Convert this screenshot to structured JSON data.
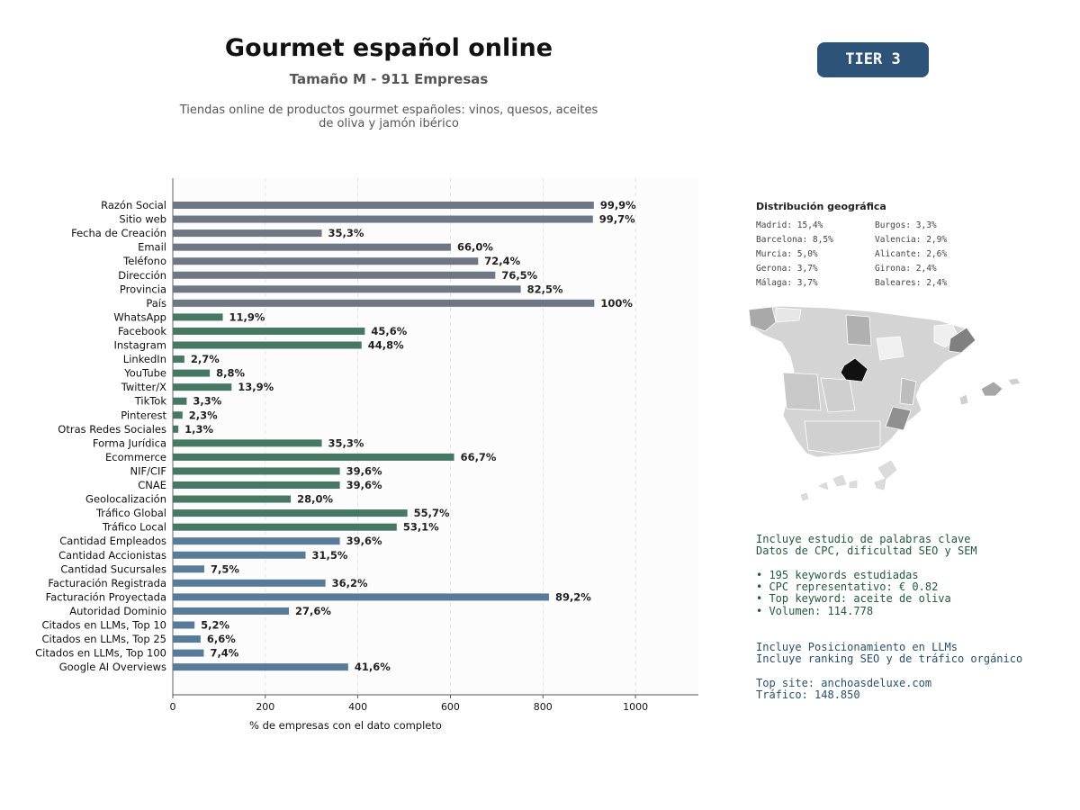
{
  "header": {
    "title": "Gourmet español online",
    "subtitle": "Tamaño M - 911 Empresas",
    "description_line1": "Tiendas online de productos gourmet españoles: vinos, quesos, aceites",
    "description_line2": "de oliva y jamón ibérico",
    "tier": "TIER 3"
  },
  "colors": {
    "gray": "#6e7783",
    "green": "#467863",
    "blue": "#587b99",
    "tier_bg": "#2e5379"
  },
  "chart_data": {
    "type": "bar",
    "orientation": "horizontal",
    "xlabel": "% de empresas con el dato completo",
    "xlim": [
      0,
      1136
    ],
    "xticks": [
      0,
      200,
      400,
      600,
      800,
      1000
    ],
    "grid": "vertical dashed",
    "categories": [
      "Razón Social",
      "Sitio web",
      "Fecha de Creación",
      "Email",
      "Teléfono",
      "Dirección",
      "Provincia",
      "País",
      "WhatsApp",
      "Facebook",
      "Instagram",
      "LinkedIn",
      "YouTube",
      "Twitter/X",
      "TikTok",
      "Pinterest",
      "Otras Redes Sociales",
      "Forma Jurídica",
      "Ecommerce",
      "NIF/CIF",
      "CNAE",
      "Geolocalización",
      "Tráfico Global",
      "Tráfico Local",
      "Cantidad Empleados",
      "Cantidad Accionistas",
      "Cantidad Sucursales",
      "Facturación Registrada",
      "Facturación Proyectada",
      "Autoridad Dominio",
      "Citados en LLMs, Top 10",
      "Citados en LLMs, Top 25",
      "Citados en LLMs, Top 100",
      "Google AI Overviews"
    ],
    "values": [
      910,
      908,
      322,
      601,
      660,
      697,
      752,
      911,
      108,
      415,
      408,
      25,
      80,
      127,
      30,
      21,
      12,
      322,
      608,
      361,
      361,
      255,
      507,
      484,
      361,
      287,
      68,
      330,
      813,
      251,
      47,
      60,
      67,
      379
    ],
    "labels": [
      "99,9%",
      "99,7%",
      "35,3%",
      "66,0%",
      "72,4%",
      "76,5%",
      "82,5%",
      "100%",
      "11,9%",
      "45,6%",
      "44,8%",
      "2,7%",
      "8,8%",
      "13,9%",
      "3,3%",
      "2,3%",
      "1,3%",
      "35,3%",
      "66,7%",
      "39,6%",
      "39,6%",
      "28,0%",
      "55,7%",
      "53,1%",
      "39,6%",
      "31,5%",
      "7,5%",
      "36,2%",
      "89,2%",
      "27,6%",
      "5,2%",
      "6,6%",
      "7,4%",
      "41,6%"
    ],
    "groups": [
      "gray",
      "gray",
      "gray",
      "gray",
      "gray",
      "gray",
      "gray",
      "gray",
      "green",
      "green",
      "green",
      "green",
      "green",
      "green",
      "green",
      "green",
      "green",
      "green",
      "green",
      "green",
      "green",
      "green",
      "green",
      "green",
      "blue",
      "blue",
      "blue",
      "blue",
      "blue",
      "blue",
      "blue",
      "blue",
      "blue",
      "blue"
    ]
  },
  "geo": {
    "title": "Distribución geográfica",
    "col1": [
      "Madrid: 15,4%",
      "Barcelona: 8,5%",
      "Murcia: 5,0%",
      "Gerona: 3,7%",
      "Málaga: 3,7%"
    ],
    "col2": [
      "Burgos: 3,3%",
      "Valencia: 2,9%",
      "Alicante: 2,6%",
      "Girona: 2,4%",
      "Baleares: 2,4%"
    ]
  },
  "keywords": {
    "line1": "Incluye estudio de palabras clave",
    "line2": "Datos de CPC, dificultad SEO y SEM",
    "bullet1": "• 195 keywords estudiadas",
    "bullet2": "• CPC representativo: € 0.82",
    "bullet3": "• Top keyword: aceite de oliva",
    "bullet4": "• Volumen: 114.778"
  },
  "llm": {
    "line1": "Incluye Posicionamiento en LLMs",
    "line2": "Incluye ranking SEO y de tráfico orgánico",
    "top_site": "Top site: anchoasdeluxe.com",
    "traffic": "Tráfico: 148.850"
  }
}
